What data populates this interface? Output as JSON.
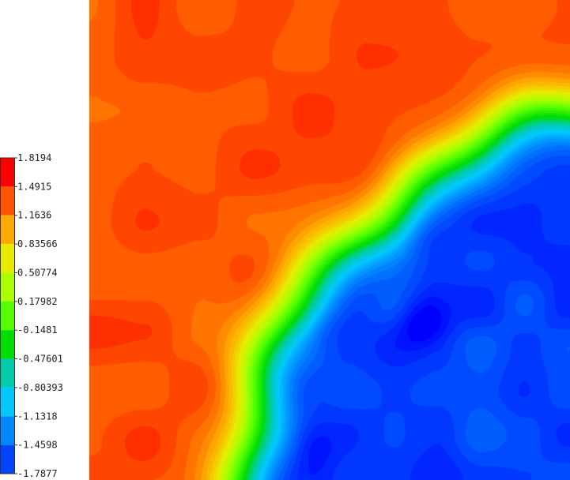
{
  "chart_data": {
    "type": "heatmap",
    "title": "",
    "xlabel": "",
    "ylabel": "",
    "colorbar": {
      "tick_labels": [
        "1.8194",
        "1.4915",
        "1.1636",
        "0.83566",
        "0.50774",
        "0.17982",
        "-0.1481",
        "-0.47601",
        "-0.80393",
        "-1.1318",
        "-1.4598",
        "-1.7877"
      ],
      "values": [
        1.8194,
        1.4915,
        1.1636,
        0.83566,
        0.50774,
        0.17982,
        -0.1481,
        -0.47601,
        -0.80393,
        -1.1318,
        -1.4598,
        -1.7877
      ],
      "colors": [
        "#ff0000",
        "#ff5500",
        "#ffaa00",
        "#eaea00",
        "#aaff00",
        "#55ff00",
        "#00dd00",
        "#00ccaa",
        "#00c8ff",
        "#0088ff",
        "#0044ff",
        "#0000ff"
      ],
      "range": [
        -1.7877,
        1.8194
      ]
    },
    "field_description": "high values (~1.3-1.6) outside an arc, low values (~-1.3 to -1.8) inside; steep transition band along the arc",
    "colors": {
      "outside": "#ff5a0a",
      "inside": "#0a64ff"
    }
  }
}
